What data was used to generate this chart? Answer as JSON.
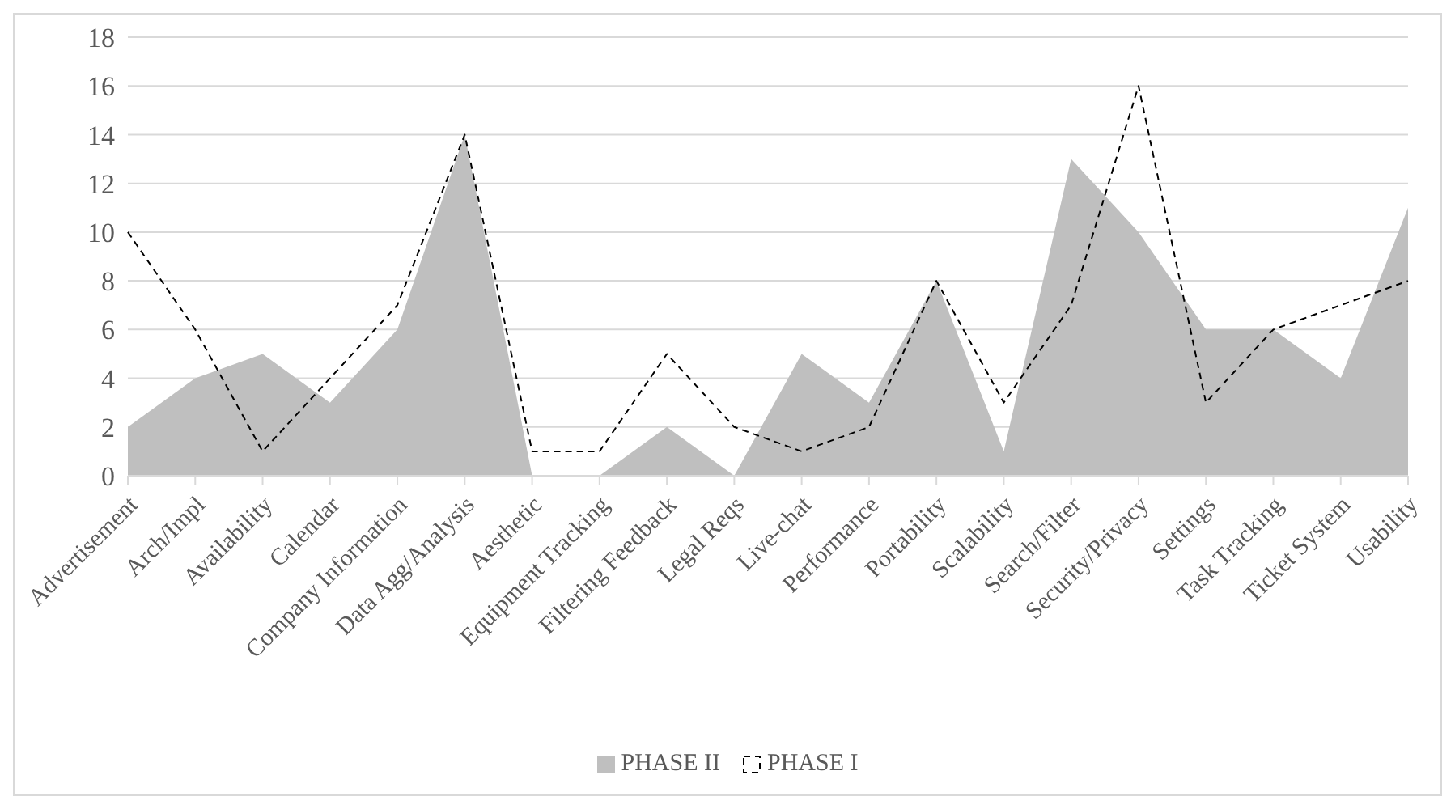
{
  "chart_data": {
    "type": "area",
    "categories": [
      "Advertisement",
      "Arch/Impl",
      "Availability",
      "Calendar",
      "Company Information",
      "Data Agg/Analysis",
      "Aesthetic",
      "Equipment Tracking",
      "Filtering Feedback",
      "Legal Reqs",
      "Live-chat",
      "Performance",
      "Portability",
      "Scalability",
      "Search/Filter",
      "Security/Privacy",
      "Settings",
      "Task Tracking",
      "Ticket System",
      "Usability"
    ],
    "series": [
      {
        "name": "PHASE II",
        "color": "#bfbfbf",
        "values": [
          2,
          4,
          5,
          3,
          6,
          14,
          0,
          0,
          2,
          0,
          5,
          3,
          8,
          1,
          13,
          10,
          6,
          6,
          4,
          11
        ]
      },
      {
        "name": "PHASE I",
        "type": "line",
        "color": "#000000",
        "line_style": "dashed",
        "values": [
          10,
          6,
          1,
          4,
          7,
          14,
          1,
          1,
          5,
          2,
          1,
          2,
          8,
          3,
          7,
          16,
          3,
          6,
          7,
          8
        ]
      }
    ],
    "ylim": [
      0,
      18
    ],
    "yticks": [
      0,
      2,
      4,
      6,
      8,
      10,
      12,
      14,
      16,
      18
    ],
    "grid": "y",
    "legend": "bottom"
  }
}
